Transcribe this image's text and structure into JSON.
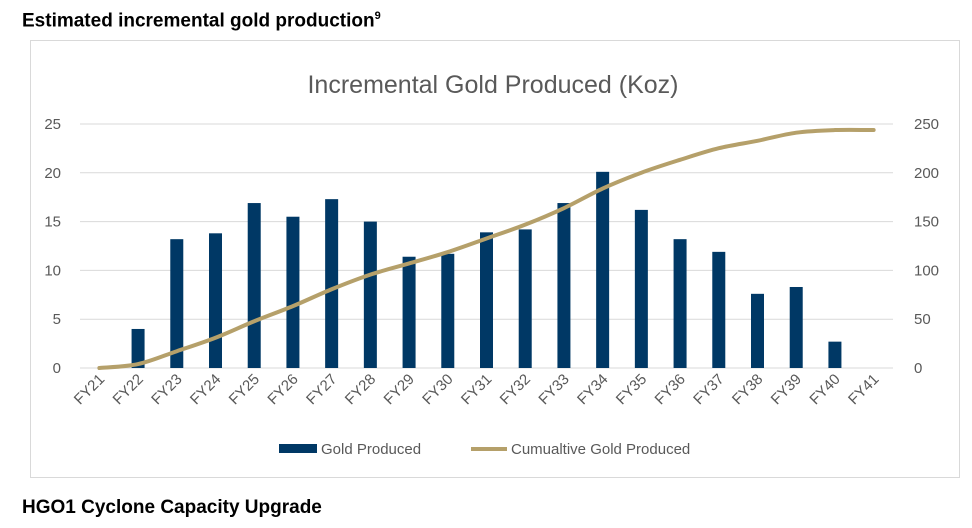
{
  "headings": {
    "top_prefix": "Estimated incremental gold production",
    "top_sup": "9",
    "bottom": "HGO1 Cyclone Capacity Upgrade"
  },
  "chart_data": {
    "type": "bar",
    "title": "Incremental Gold Produced (Koz)",
    "categories": [
      "FY21",
      "FY22",
      "FY23",
      "FY24",
      "FY25",
      "FY26",
      "FY27",
      "FY28",
      "FY29",
      "FY30",
      "FY31",
      "FY32",
      "FY33",
      "FY34",
      "FY35",
      "FY36",
      "FY37",
      "FY38",
      "FY39",
      "FY40",
      "FY41"
    ],
    "series": [
      {
        "name": "Gold Produced",
        "type": "bar",
        "axis": "left",
        "color": "#003865",
        "values": [
          0,
          4.0,
          13.2,
          13.8,
          16.9,
          15.5,
          17.3,
          15.0,
          11.4,
          11.7,
          13.9,
          14.2,
          16.9,
          20.1,
          16.2,
          13.2,
          11.9,
          7.6,
          8.3,
          2.7,
          0
        ]
      },
      {
        "name": "Cumualtive Gold Produced",
        "type": "line",
        "axis": "right",
        "color": "#b5a06a",
        "values": [
          0,
          4.0,
          17.2,
          31.0,
          47.9,
          63.4,
          80.7,
          95.7,
          107.1,
          118.8,
          132.7,
          146.9,
          163.8,
          183.9,
          200.1,
          213.3,
          225.2,
          232.8,
          241.1,
          243.8,
          243.8
        ]
      }
    ],
    "y_left": {
      "ticks": [
        "0",
        "5",
        "10",
        "15",
        "20",
        "25"
      ],
      "ylim": [
        0,
        25
      ]
    },
    "y_right": {
      "ticks": [
        "0",
        "50",
        "100",
        "150",
        "200",
        "250"
      ],
      "ylim": [
        0,
        250
      ]
    },
    "legend": {
      "position": "bottom"
    },
    "grid": true
  }
}
